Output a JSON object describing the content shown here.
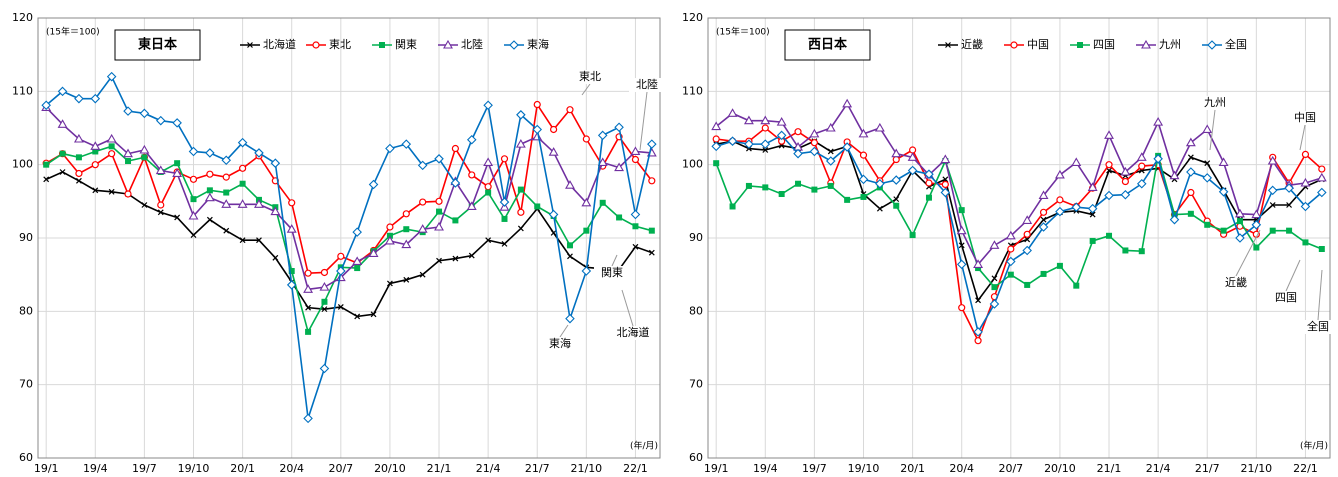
{
  "chart_data": [
    {
      "type": "line",
      "title": "東日本",
      "note": "(15年＝100)",
      "x_unit": "(年/月)",
      "categories": [
        "19/1",
        null,
        null,
        "19/4",
        null,
        null,
        "19/7",
        null,
        null,
        "19/10",
        null,
        null,
        "20/1",
        null,
        null,
        "20/4",
        null,
        null,
        "20/7",
        null,
        null,
        "20/10",
        null,
        null,
        "21/1",
        null,
        null,
        "21/4",
        null,
        null,
        "21/7",
        null,
        null,
        "21/10",
        null,
        null,
        "22/1",
        null
      ],
      "ylim": [
        60,
        120
      ],
      "yticks": [
        60,
        70,
        80,
        90,
        100,
        110,
        120
      ],
      "grid": true,
      "series": [
        {
          "name": "北海道",
          "color": "#000000",
          "marker": "x",
          "values": [
            98,
            99,
            97.8,
            96.5,
            96.3,
            96,
            94.5,
            93.5,
            92.8,
            90.4,
            92.5,
            91,
            89.7,
            89.7,
            87.3,
            84,
            80.5,
            80.3,
            80.6,
            79.3,
            79.6,
            83.8,
            84.3,
            85,
            86.9,
            87.2,
            87.6,
            89.7,
            89.2,
            91.3,
            94,
            90.7,
            87.5,
            86,
            85.8,
            85.7,
            88.8,
            88
          ]
        },
        {
          "name": "東北",
          "color": "#ff0000",
          "marker": "circle",
          "values": [
            100.2,
            101.5,
            98.8,
            100,
            101.5,
            96,
            101,
            94.5,
            99,
            98,
            98.7,
            98.3,
            99.5,
            101.2,
            97.8,
            94.8,
            85.2,
            85.3,
            87.5,
            86.6,
            88.3,
            91.5,
            93.3,
            94.9,
            95,
            102.2,
            98.6,
            97,
            100.8,
            93.5,
            108.2,
            104.8,
            107.5,
            103.5,
            99.8,
            103.8,
            100.7,
            97.8
          ]
        },
        {
          "name": "関東",
          "color": "#00b050",
          "marker": "square",
          "values": [
            100,
            101.5,
            101,
            101.8,
            102.5,
            100.5,
            101,
            99,
            100.2,
            95.3,
            96.5,
            96.2,
            97.4,
            95.2,
            94.2,
            85.5,
            77.2,
            81.3,
            86,
            85.9,
            88.2,
            90.3,
            91.2,
            90.8,
            93.6,
            92.4,
            94.3,
            96.2,
            92.6,
            96.6,
            94.3,
            93,
            89,
            91,
            94.8,
            92.8,
            91.6,
            91
          ]
        },
        {
          "name": "北陸",
          "color": "#7030a0",
          "marker": "triangle",
          "values": [
            107.8,
            105.5,
            103.5,
            102.5,
            103.5,
            101.5,
            102,
            99.2,
            98.8,
            93,
            95.5,
            94.6,
            94.6,
            94.6,
            93.6,
            91.2,
            83,
            83.3,
            84.6,
            86.8,
            87.9,
            89.6,
            89.1,
            91.2,
            91.5,
            97.7,
            94.3,
            100.3,
            94.2,
            102.8,
            103.8,
            101.7,
            97.2,
            94.8,
            100.3,
            99.6,
            101.8,
            101.6
          ]
        },
        {
          "name": "東海",
          "color": "#0070c0",
          "marker": "diamond",
          "values": [
            108.1,
            110,
            109,
            109,
            112,
            107.3,
            107,
            106,
            105.7,
            101.8,
            101.6,
            100.6,
            103,
            101.6,
            100.2,
            83.6,
            65.4,
            72.2,
            85.5,
            90.8,
            97.3,
            102.2,
            102.8,
            99.9,
            100.8,
            97.5,
            103.4,
            108.1,
            94.9,
            106.8,
            104.8,
            93.2,
            79,
            85.5,
            104,
            105.1,
            93.2,
            102.8
          ]
        }
      ],
      "annotations": [
        "東北",
        "北陸",
        "関東",
        "東海",
        "北海道"
      ]
    },
    {
      "type": "line",
      "title": "西日本",
      "note": "(15年＝100)",
      "x_unit": "(年/月)",
      "categories": [
        "19/1",
        null,
        null,
        "19/4",
        null,
        null,
        "19/7",
        null,
        null,
        "19/10",
        null,
        null,
        "20/1",
        null,
        null,
        "20/4",
        null,
        null,
        "20/7",
        null,
        null,
        "20/10",
        null,
        null,
        "21/1",
        null,
        null,
        "21/4",
        null,
        null,
        "21/7",
        null,
        null,
        "21/10",
        null,
        null,
        "22/1",
        null
      ],
      "ylim": [
        60,
        120
      ],
      "yticks": [
        60,
        70,
        80,
        90,
        100,
        110,
        120
      ],
      "grid": true,
      "series": [
        {
          "name": "近畿",
          "color": "#000000",
          "marker": "x",
          "values": [
            102.8,
            103.2,
            102.2,
            102,
            102.6,
            102.2,
            103.2,
            101.8,
            102.5,
            96,
            94,
            95.3,
            99.2,
            97,
            98,
            89,
            81.5,
            84.5,
            89,
            89.8,
            92.5,
            93.5,
            93.7,
            93.2,
            99.2,
            98.5,
            99.2,
            99.5,
            98,
            101,
            100.2,
            96.5,
            92.5,
            92.5,
            94.5,
            94.5,
            97,
            98
          ]
        },
        {
          "name": "中国",
          "color": "#ff0000",
          "marker": "circle",
          "values": [
            103.5,
            103.2,
            103.2,
            105,
            103.2,
            104.5,
            103,
            97.5,
            103.1,
            101.3,
            97.8,
            100.7,
            102,
            97.5,
            97.3,
            80.5,
            76,
            82,
            88.5,
            90.5,
            93.5,
            95.2,
            94.3,
            96.8,
            100,
            97.7,
            99.8,
            100,
            93.2,
            96.2,
            92.3,
            90.5,
            91.6,
            90.5,
            101,
            97.5,
            101.4,
            99.4
          ]
        },
        {
          "name": "四国",
          "color": "#00b050",
          "marker": "square",
          "values": [
            100.2,
            94.3,
            97.1,
            96.9,
            96,
            97.4,
            96.6,
            97.1,
            95.2,
            95.6,
            96.9,
            94.4,
            90.4,
            95.5,
            100.5,
            93.8,
            85.9,
            83.3,
            85,
            83.6,
            85.1,
            86.2,
            83.5,
            89.6,
            90.3,
            88.3,
            88.2,
            101.2,
            93.2,
            93.3,
            91.8,
            91,
            92.3,
            88.7,
            91,
            91,
            89.4,
            88.5
          ]
        },
        {
          "name": "九州",
          "color": "#7030a0",
          "marker": "triangle",
          "values": [
            105.2,
            107,
            106,
            106,
            105.8,
            102.4,
            104.2,
            105,
            108.3,
            104.2,
            105,
            101.5,
            101,
            98.6,
            100.7,
            91,
            86.4,
            89,
            90.3,
            92.4,
            95.8,
            98.6,
            100.3,
            96.9,
            104,
            99,
            101,
            105.8,
            98.5,
            103,
            104.8,
            100.3,
            93.3,
            93.2,
            100.5,
            97.2,
            97.5,
            98.2
          ]
        },
        {
          "name": "全国",
          "color": "#0070c0",
          "marker": "diamond",
          "values": [
            102.5,
            103.2,
            102.8,
            102.8,
            104,
            101.5,
            101.8,
            100.5,
            102.4,
            98,
            97.4,
            97.9,
            99.2,
            98.7,
            96.2,
            86.4,
            77.2,
            81,
            86.8,
            88.3,
            91.5,
            93.6,
            94.2,
            94,
            95.8,
            95.9,
            97.4,
            100.8,
            92.5,
            99,
            98.2,
            96.3,
            90,
            91.8,
            96.5,
            96.8,
            94.3,
            96.2
          ]
        }
      ],
      "annotations": [
        "九州",
        "中国",
        "近畿",
        "四国",
        "全国"
      ]
    }
  ]
}
